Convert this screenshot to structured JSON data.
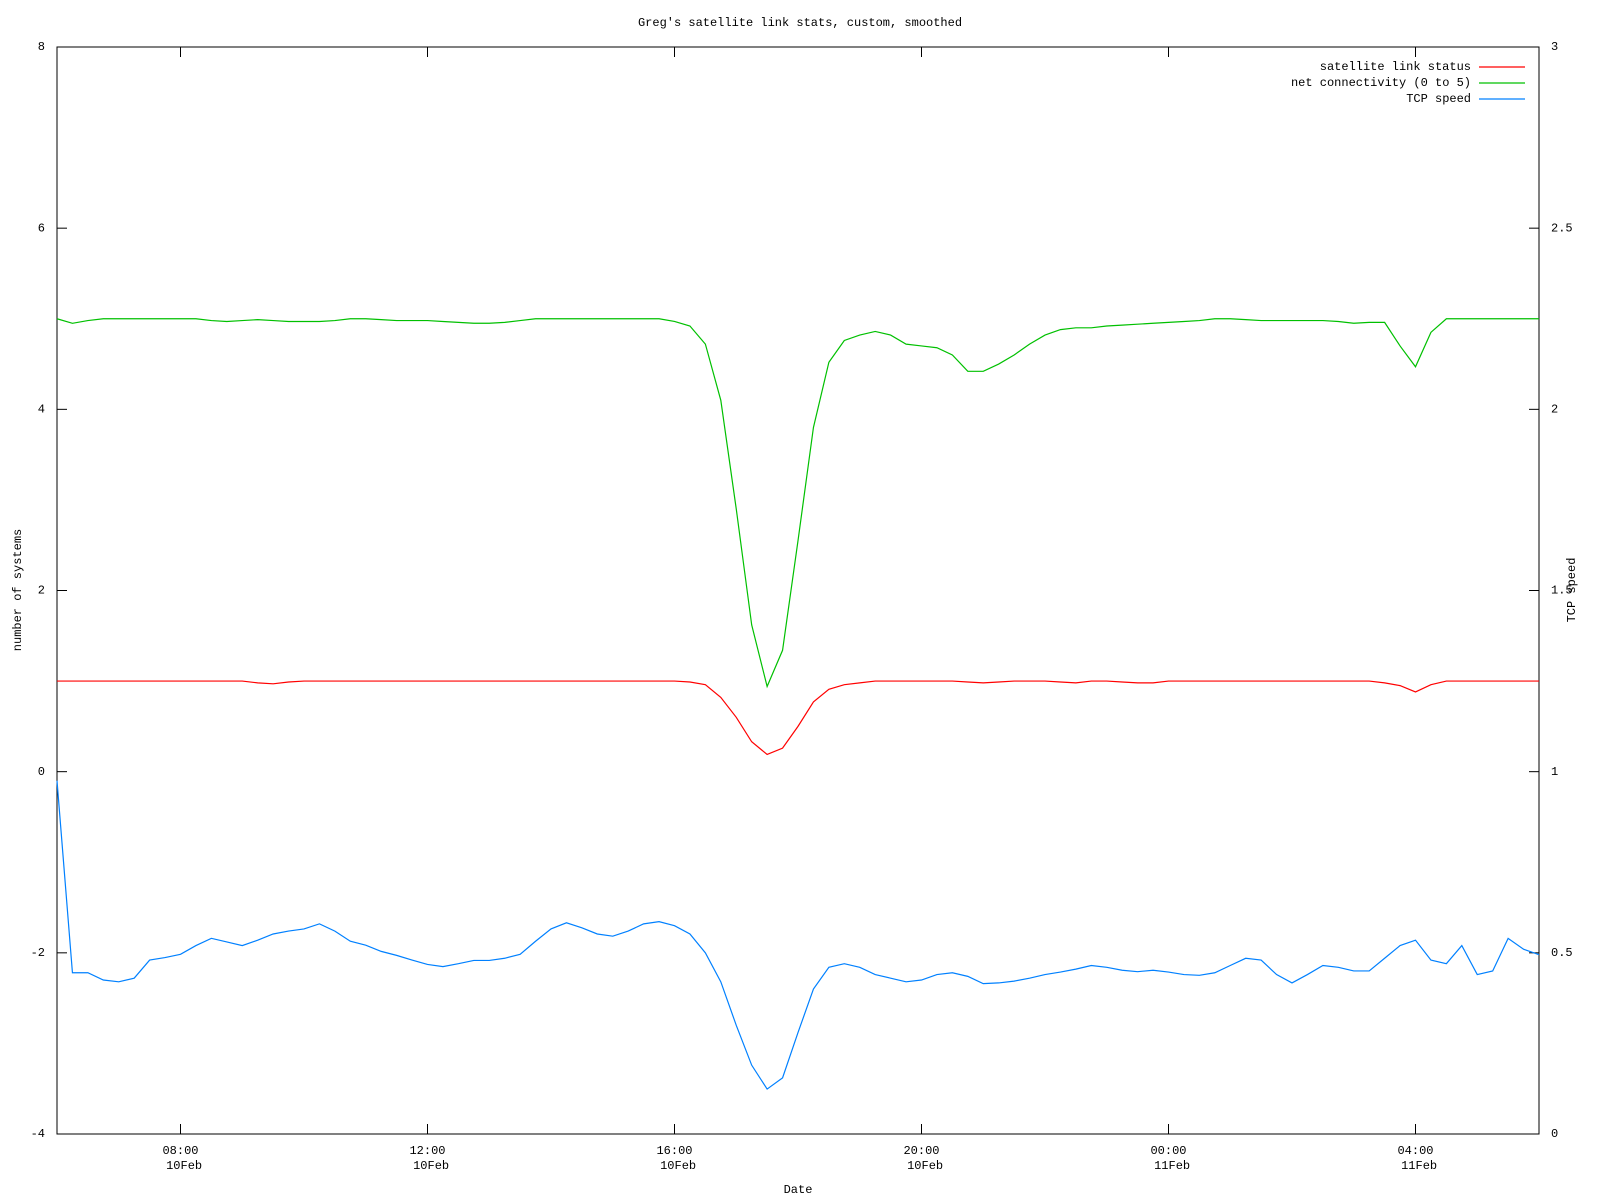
{
  "chart_data": {
    "type": "line",
    "title": "Greg's satellite link stats, custom, smoothed",
    "xlabel": "Date",
    "ylabel": "number of systems",
    "y2label": "TCP speed",
    "legend": "upper right",
    "x": [
      6,
      6.25,
      6.5,
      6.75,
      7,
      7.25,
      7.5,
      7.75,
      8,
      8.25,
      8.5,
      8.75,
      9,
      9.25,
      9.5,
      9.75,
      10,
      10.25,
      10.5,
      10.75,
      11,
      11.25,
      11.5,
      11.75,
      12,
      12.25,
      12.5,
      12.75,
      13,
      13.25,
      13.5,
      13.75,
      14,
      14.25,
      14.5,
      14.75,
      15,
      15.25,
      15.5,
      15.75,
      16,
      16.25,
      16.5,
      16.75,
      17,
      17.25,
      17.5,
      17.75,
      18,
      18.25,
      18.5,
      18.75,
      19,
      19.25,
      19.5,
      19.75,
      20,
      20.25,
      20.5,
      20.75,
      21,
      21.25,
      21.5,
      21.75,
      22,
      22.25,
      22.5,
      22.75,
      23,
      23.25,
      23.5,
      23.75,
      24,
      24.25,
      24.5,
      24.75,
      25,
      25.25,
      25.5,
      25.75,
      26,
      26.25,
      26.5,
      26.75,
      27,
      27.25,
      27.5,
      27.75,
      28,
      28.25,
      28.5,
      28.75,
      29,
      29.25,
      29.5,
      29.75,
      30
    ],
    "xlim": [
      6,
      30
    ],
    "xticks": [
      {
        "value": 8,
        "label": "08:00\n10Feb"
      },
      {
        "value": 12,
        "label": "12:00\n10Feb"
      },
      {
        "value": 16,
        "label": "16:00\n10Feb"
      },
      {
        "value": 20,
        "label": "20:00\n10Feb"
      },
      {
        "value": 24,
        "label": "00:00\n11Feb"
      },
      {
        "value": 28,
        "label": "04:00\n11Feb"
      }
    ],
    "ylim": [
      -4,
      8
    ],
    "yticks": [
      -4,
      -2,
      0,
      2,
      4,
      6,
      8
    ],
    "y2lim": [
      0,
      3
    ],
    "y2ticks": [
      0,
      0.5,
      1,
      1.5,
      2,
      2.5,
      3
    ],
    "series": [
      {
        "name": "satellite link status",
        "color": "#ff0000",
        "values": [
          1,
          1,
          1,
          1,
          1,
          1,
          1,
          1,
          1,
          1,
          1,
          1,
          1,
          0.98,
          0.97,
          0.99,
          1,
          1,
          1,
          1,
          1,
          1,
          1,
          1,
          1,
          1,
          1,
          1,
          1,
          1,
          1,
          1,
          1,
          1,
          1,
          1,
          1,
          1,
          1,
          1,
          1,
          0.99,
          0.96,
          0.82,
          0.6,
          0.33,
          0.19,
          0.26,
          0.5,
          0.77,
          0.91,
          0.96,
          0.98,
          1,
          1,
          1,
          1,
          1,
          1,
          0.99,
          0.98,
          0.99,
          1,
          1,
          1,
          0.99,
          0.98,
          1,
          1,
          0.99,
          0.98,
          0.98,
          1,
          1,
          1,
          1,
          1,
          1,
          1,
          1,
          1,
          1,
          1,
          1,
          1,
          1,
          0.98,
          0.95,
          0.88,
          0.96,
          1,
          1,
          1,
          1,
          1,
          1,
          1
        ]
      },
      {
        "name": "net connectivity (0 to 5)",
        "color": "#00c000",
        "values": [
          5,
          4.95,
          4.98,
          5,
          5,
          5,
          5,
          5,
          5,
          5,
          4.98,
          4.97,
          4.98,
          4.99,
          4.98,
          4.97,
          4.97,
          4.97,
          4.98,
          5,
          5,
          4.99,
          4.98,
          4.98,
          4.98,
          4.97,
          4.96,
          4.95,
          4.95,
          4.96,
          4.98,
          5,
          5,
          5,
          5,
          5,
          5,
          5,
          5,
          5,
          4.97,
          4.92,
          4.72,
          4.1,
          2.9,
          1.62,
          0.94,
          1.34,
          2.55,
          3.8,
          4.52,
          4.76,
          4.82,
          4.86,
          4.82,
          4.72,
          4.7,
          4.68,
          4.6,
          4.42,
          4.42,
          4.5,
          4.6,
          4.72,
          4.82,
          4.88,
          4.9,
          4.9,
          4.92,
          4.93,
          4.94,
          4.95,
          4.96,
          4.97,
          4.98,
          5,
          5,
          4.99,
          4.98,
          4.98,
          4.98,
          4.98,
          4.98,
          4.97,
          4.95,
          4.96,
          4.96,
          4.7,
          4.47,
          4.85,
          5,
          5,
          5,
          5,
          5,
          5,
          5
        ]
      },
      {
        "name": "TCP speed",
        "color": "#0080ff",
        "axis": "y2",
        "values": [
          0.975,
          0.445,
          0.445,
          0.425,
          0.42,
          0.43,
          0.48,
          0.487,
          0.496,
          0.52,
          0.54,
          0.53,
          0.52,
          0.535,
          0.552,
          0.56,
          0.566,
          0.58,
          0.56,
          0.532,
          0.521,
          0.504,
          0.493,
          0.48,
          0.468,
          0.462,
          0.47,
          0.479,
          0.479,
          0.485,
          0.496,
          0.532,
          0.566,
          0.583,
          0.569,
          0.552,
          0.546,
          0.56,
          0.58,
          0.586,
          0.575,
          0.552,
          0.5,
          0.42,
          0.3,
          0.19,
          0.124,
          0.155,
          0.28,
          0.4,
          0.46,
          0.47,
          0.46,
          0.44,
          0.43,
          0.42,
          0.425,
          0.44,
          0.445,
          0.435,
          0.415,
          0.417,
          0.422,
          0.43,
          0.44,
          0.447,
          0.455,
          0.465,
          0.46,
          0.452,
          0.448,
          0.452,
          0.447,
          0.44,
          0.438,
          0.445,
          0.465,
          0.485,
          0.48,
          0.44,
          0.417,
          0.44,
          0.465,
          0.46,
          0.45,
          0.45,
          0.485,
          0.52,
          0.535,
          0.48,
          0.47,
          0.52,
          0.44,
          0.45,
          0.54,
          0.51,
          0.495
        ]
      }
    ]
  }
}
